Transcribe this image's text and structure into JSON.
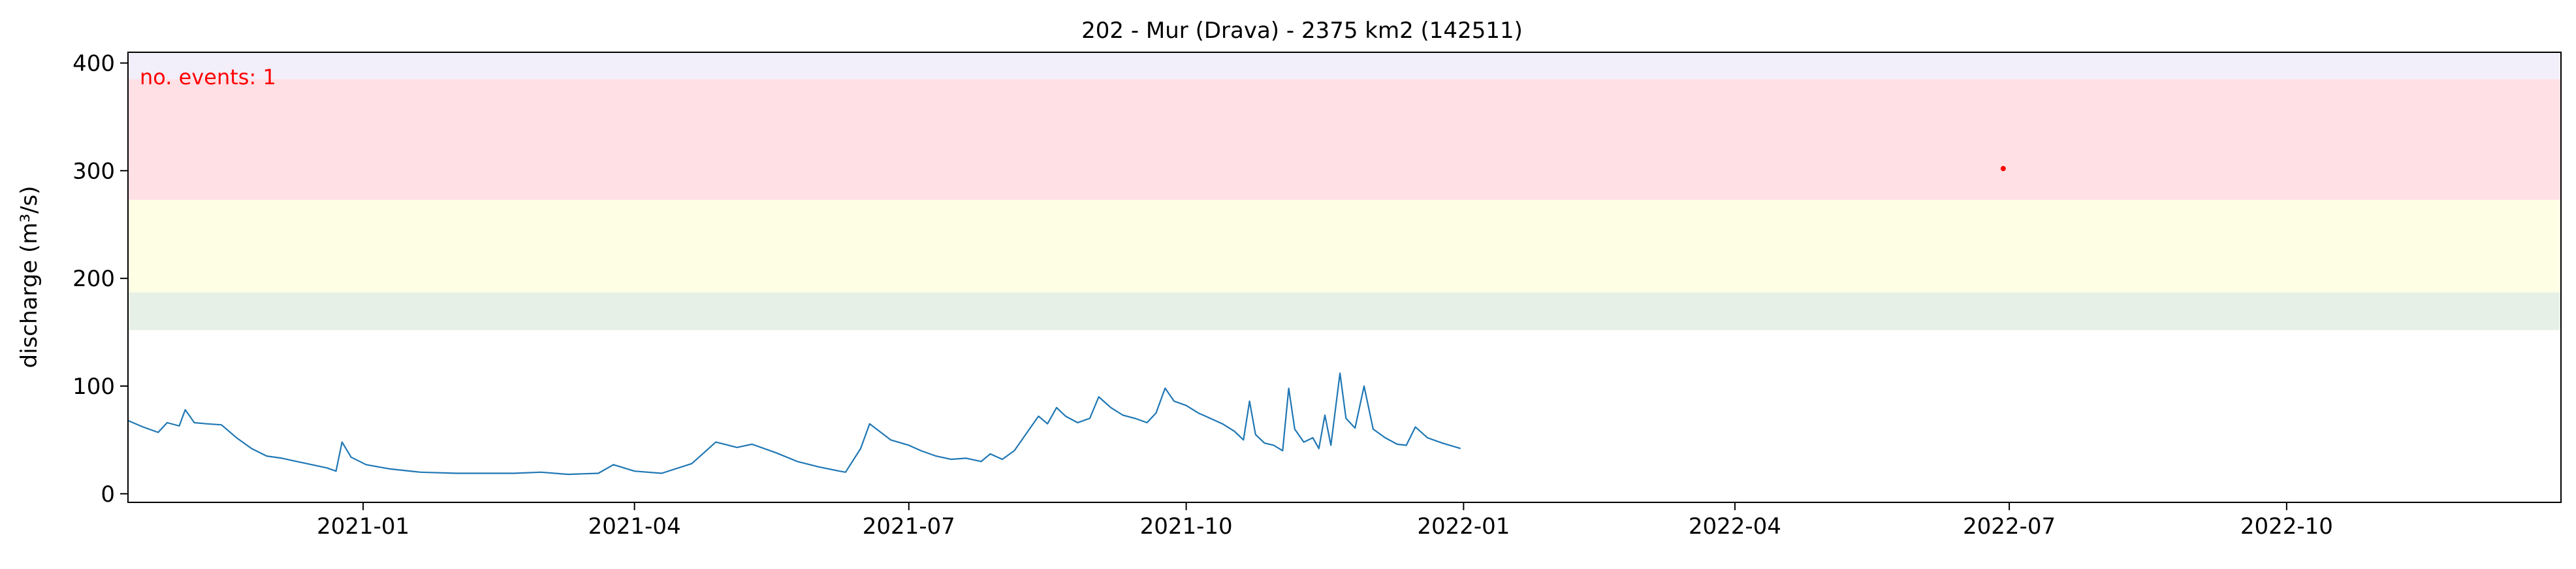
{
  "chart_data": {
    "type": "line",
    "title": "202 - Mur (Drava) - 2375 km2 (142511)",
    "xlabel": "",
    "ylabel": "discharge (m³/s)",
    "xlim": [
      "2020-10-15",
      "2022-12-31"
    ],
    "ylim": [
      -8,
      410
    ],
    "xticks": [
      "2021-01-01",
      "2021-04-01",
      "2021-07-01",
      "2021-10-01",
      "2022-01-01",
      "2022-04-01",
      "2022-07-01",
      "2022-10-01"
    ],
    "xtick_labels": [
      "2021-01",
      "2021-04",
      "2021-07",
      "2021-10",
      "2022-01",
      "2022-04",
      "2022-07",
      "2022-10"
    ],
    "yticks": [
      0,
      100,
      200,
      300,
      400
    ],
    "ytick_labels": [
      "0",
      "100",
      "200",
      "300",
      "400"
    ],
    "grid": false,
    "annotation": {
      "text": "no. events: 1",
      "color": "#ff0000"
    },
    "threshold_bands": [
      {
        "from": 152,
        "to": 187,
        "color": "#e6f0e6"
      },
      {
        "from": 187,
        "to": 273,
        "color": "#fefee4"
      },
      {
        "from": 273,
        "to": 385,
        "color": "#ffe0e5"
      },
      {
        "from": 385,
        "to": 410,
        "color": "#f2eefa"
      }
    ],
    "series": [
      {
        "color": "#1f77b4",
        "points": [
          [
            "2020-10-15",
            68
          ],
          [
            "2020-10-20",
            62
          ],
          [
            "2020-10-25",
            57
          ],
          [
            "2020-10-28",
            66
          ],
          [
            "2020-11-01",
            63
          ],
          [
            "2020-11-03",
            78
          ],
          [
            "2020-11-06",
            66
          ],
          [
            "2020-11-10",
            65
          ],
          [
            "2020-11-15",
            64
          ],
          [
            "2020-11-20",
            52
          ],
          [
            "2020-11-25",
            42
          ],
          [
            "2020-11-30",
            35
          ],
          [
            "2020-12-05",
            33
          ],
          [
            "2020-12-10",
            30
          ],
          [
            "2020-12-15",
            27
          ],
          [
            "2020-12-20",
            24
          ],
          [
            "2020-12-23",
            21
          ],
          [
            "2020-12-25",
            48
          ],
          [
            "2020-12-28",
            34
          ],
          [
            "2021-01-02",
            27
          ],
          [
            "2021-01-10",
            23
          ],
          [
            "2021-01-20",
            20
          ],
          [
            "2021-02-01",
            19
          ],
          [
            "2021-02-20",
            19
          ],
          [
            "2021-03-01",
            20
          ],
          [
            "2021-03-10",
            18
          ],
          [
            "2021-03-20",
            19
          ],
          [
            "2021-03-25",
            27
          ],
          [
            "2021-04-01",
            21
          ],
          [
            "2021-04-10",
            19
          ],
          [
            "2021-04-20",
            28
          ],
          [
            "2021-04-28",
            48
          ],
          [
            "2021-05-05",
            43
          ],
          [
            "2021-05-10",
            46
          ],
          [
            "2021-05-18",
            38
          ],
          [
            "2021-05-25",
            30
          ],
          [
            "2021-06-01",
            25
          ],
          [
            "2021-06-08",
            21
          ],
          [
            "2021-06-10",
            20
          ],
          [
            "2021-06-15",
            42
          ],
          [
            "2021-06-18",
            65
          ],
          [
            "2021-06-25",
            50
          ],
          [
            "2021-07-01",
            45
          ],
          [
            "2021-07-05",
            40
          ],
          [
            "2021-07-10",
            35
          ],
          [
            "2021-07-15",
            32
          ],
          [
            "2021-07-20",
            33
          ],
          [
            "2021-07-25",
            30
          ],
          [
            "2021-07-28",
            37
          ],
          [
            "2021-08-01",
            32
          ],
          [
            "2021-08-05",
            40
          ],
          [
            "2021-08-10",
            60
          ],
          [
            "2021-08-13",
            72
          ],
          [
            "2021-08-16",
            65
          ],
          [
            "2021-08-19",
            80
          ],
          [
            "2021-08-22",
            72
          ],
          [
            "2021-08-26",
            66
          ],
          [
            "2021-08-30",
            70
          ],
          [
            "2021-09-02",
            90
          ],
          [
            "2021-09-06",
            80
          ],
          [
            "2021-09-10",
            73
          ],
          [
            "2021-09-14",
            70
          ],
          [
            "2021-09-18",
            66
          ],
          [
            "2021-09-21",
            75
          ],
          [
            "2021-09-24",
            98
          ],
          [
            "2021-09-27",
            86
          ],
          [
            "2021-10-01",
            82
          ],
          [
            "2021-10-05",
            75
          ],
          [
            "2021-10-09",
            70
          ],
          [
            "2021-10-13",
            65
          ],
          [
            "2021-10-17",
            58
          ],
          [
            "2021-10-20",
            50
          ],
          [
            "2021-10-22",
            86
          ],
          [
            "2021-10-24",
            55
          ],
          [
            "2021-10-27",
            47
          ],
          [
            "2021-10-30",
            45
          ],
          [
            "2021-11-02",
            40
          ],
          [
            "2021-11-04",
            98
          ],
          [
            "2021-11-06",
            60
          ],
          [
            "2021-11-09",
            48
          ],
          [
            "2021-11-12",
            52
          ],
          [
            "2021-11-14",
            42
          ],
          [
            "2021-11-16",
            73
          ],
          [
            "2021-11-18",
            45
          ],
          [
            "2021-11-21",
            112
          ],
          [
            "2021-11-23",
            70
          ],
          [
            "2021-11-26",
            61
          ],
          [
            "2021-11-29",
            100
          ],
          [
            "2021-12-02",
            60
          ],
          [
            "2021-12-06",
            52
          ],
          [
            "2021-12-10",
            46
          ],
          [
            "2021-12-13",
            45
          ],
          [
            "2021-12-16",
            62
          ],
          [
            "2021-12-20",
            52
          ],
          [
            "2021-12-25",
            47
          ],
          [
            "2021-12-31",
            42
          ]
        ]
      }
    ],
    "event_markers": [
      {
        "x": "2022-06-29",
        "y": 302,
        "color": "#ff0000"
      }
    ]
  }
}
